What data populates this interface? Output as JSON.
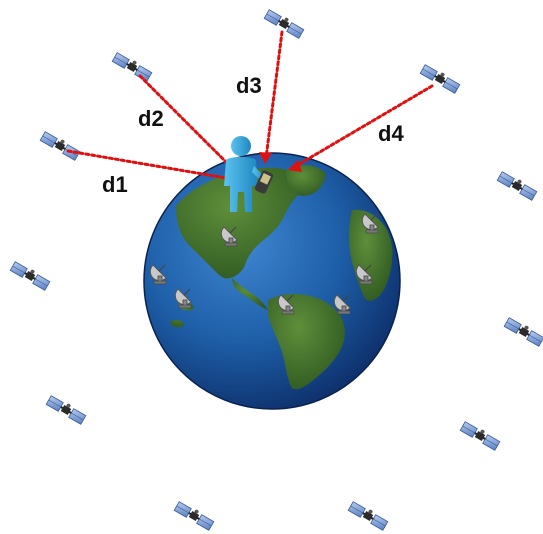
{
  "diagram": {
    "distances": [
      {
        "label": "d1"
      },
      {
        "label": "d2"
      },
      {
        "label": "d3"
      },
      {
        "label": "d4"
      }
    ]
  },
  "colors": {
    "signal_line": "#e01010",
    "ocean": "#1e5fa8",
    "land": "#3d6f2a",
    "person": "#2aa3d8",
    "satellite_panel": "#7aa0d8",
    "satellite_body": "#333333"
  },
  "icons": {
    "satellite": "satellite-icon",
    "ground_station": "satellite-dish-icon",
    "user": "person-icon",
    "receiver": "gps-receiver-icon",
    "planet": "globe-icon"
  }
}
